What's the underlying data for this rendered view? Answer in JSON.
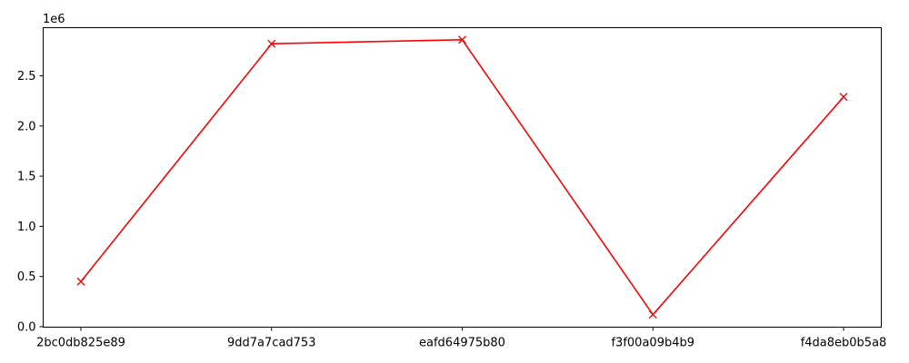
{
  "chart_data": {
    "type": "line",
    "title": "",
    "xlabel": "",
    "ylabel": "",
    "y_offset_label": "1e6",
    "categories": [
      "2bc0db825e89",
      "9dd7a7cad753",
      "eafd64975b80",
      "f3f00a09b4b9",
      "f4da8eb0b5a8"
    ],
    "series": [
      {
        "values": [
          450000,
          2820000,
          2860000,
          120000,
          2290000
        ],
        "color": "#ff0000",
        "marker": "x"
      }
    ],
    "ylim": [
      -5000,
      2980000
    ],
    "yticks": [
      {
        "value": 0,
        "label": "0.0"
      },
      {
        "value": 500000,
        "label": "0.5"
      },
      {
        "value": 1000000,
        "label": "1.0"
      },
      {
        "value": 1500000,
        "label": "1.5"
      },
      {
        "value": 2000000,
        "label": "2.0"
      },
      {
        "value": 2500000,
        "label": "2.5"
      }
    ],
    "grid": false,
    "legend": "none"
  }
}
